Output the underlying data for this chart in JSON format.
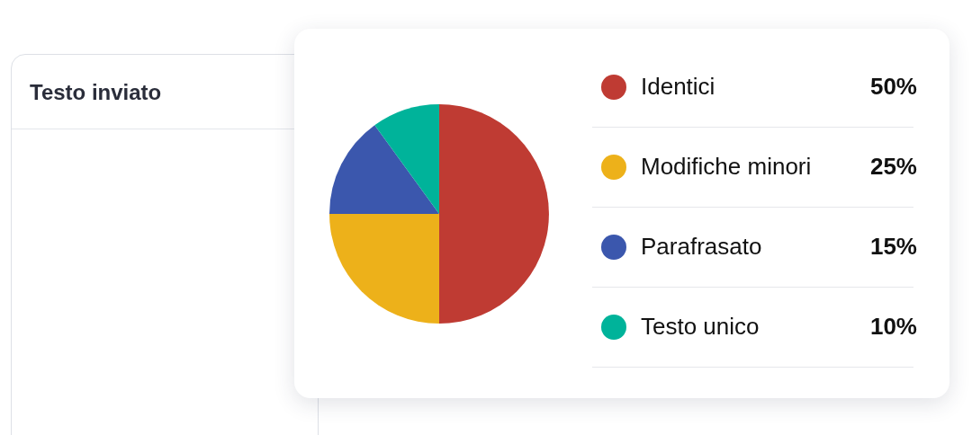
{
  "chart_data": {
    "type": "pie",
    "categories": [
      "Identici",
      "Modifiche minori",
      "Parafrasato",
      "Testo unico"
    ],
    "values": [
      50,
      25,
      15,
      10
    ],
    "colors": [
      "#bf3b33",
      "#edb11a",
      "#3b57ad",
      "#00b39a"
    ],
    "value_labels": [
      "50%",
      "25%",
      "15%",
      "10%"
    ],
    "legend": "right",
    "annotations": [
      "Testo inviato"
    ]
  }
}
